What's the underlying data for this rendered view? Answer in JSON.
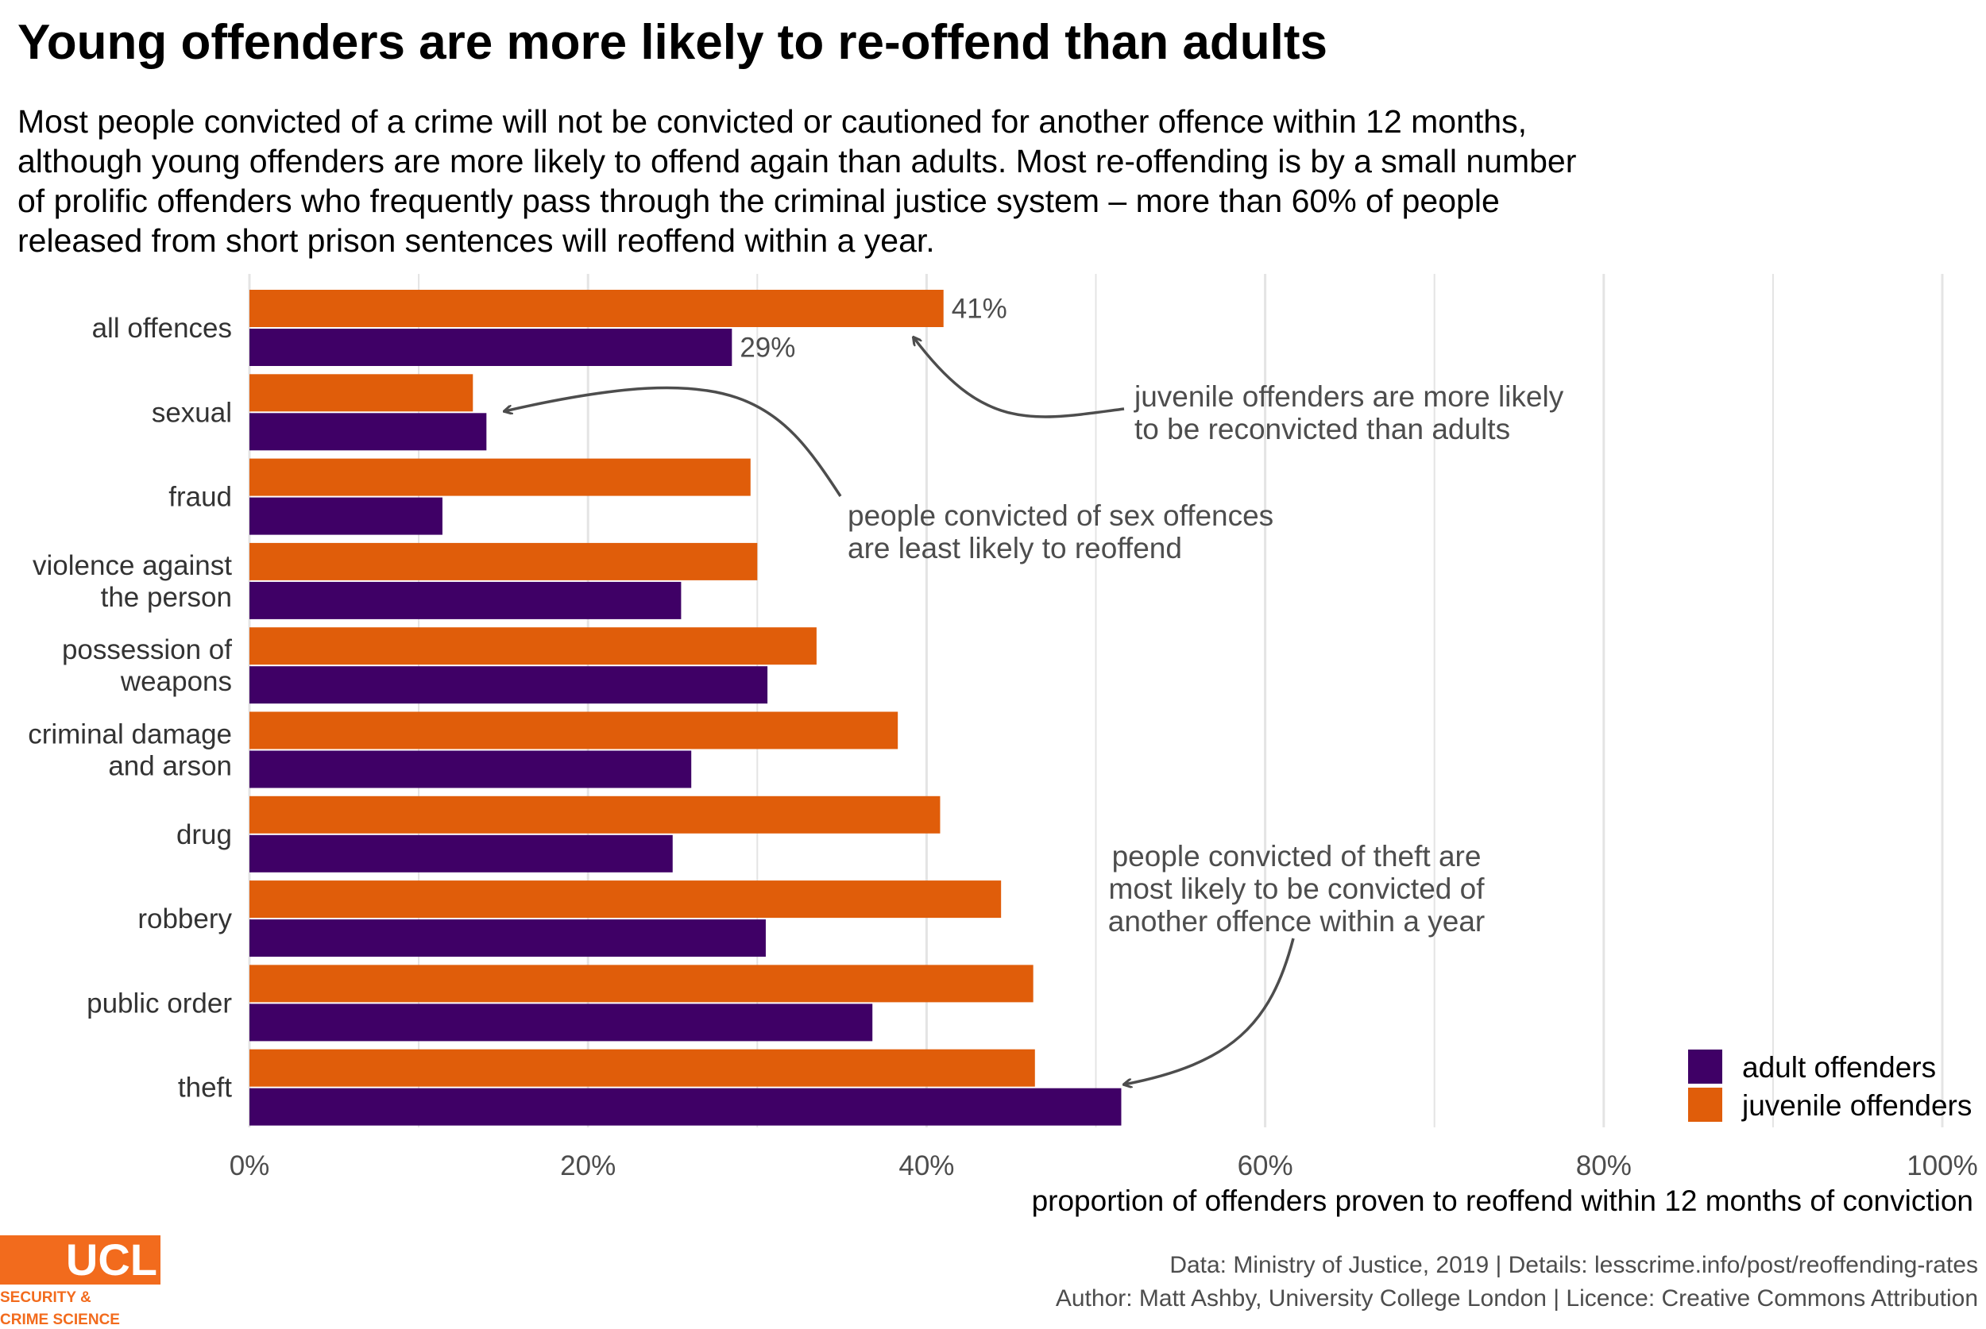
{
  "title": "Young offenders are more likely to re-offend than adults",
  "subtitle": "Most people convicted of a crime will not be convicted or cautioned for another offence within 12 months, although young offenders are more likely to offend again than adults. Most re-offending is by a small number of prolific offenders who frequently pass through the criminal justice system – more than 60% of people released from short prison sentences will reoffend within a year.",
  "colors": {
    "adult": "#3f0066",
    "juvenile": "#e05d0a",
    "grid": "#e4e4e4",
    "annotation": "#4d4d4d"
  },
  "chart_data": {
    "type": "bar",
    "orientation": "horizontal",
    "categories": [
      "all offences",
      "sexual",
      "fraud",
      "violence against\nthe person",
      "possession of\nweapons",
      "criminal damage\nand arson",
      "drug",
      "robbery",
      "public order",
      "theft"
    ],
    "series": [
      {
        "name": "juvenile offenders",
        "values": [
          41,
          13.2,
          29.6,
          30,
          33.5,
          38.3,
          40.8,
          44.4,
          46.3,
          46.4
        ]
      },
      {
        "name": "adult offenders",
        "values": [
          28.5,
          14,
          11.4,
          25.5,
          30.6,
          26.1,
          25,
          30.5,
          36.8,
          51.5
        ]
      }
    ],
    "data_labels": [
      {
        "category": "all offences",
        "series": "juvenile offenders",
        "text": "41%"
      },
      {
        "category": "all offences",
        "series": "adult offenders",
        "text": "29%"
      }
    ],
    "xlim": [
      0,
      100
    ],
    "xticks": [
      0,
      20,
      40,
      60,
      80,
      100
    ],
    "xtick_labels": [
      "0%",
      "20%",
      "40%",
      "60%",
      "80%",
      "100%"
    ],
    "xlabel": "proportion of offenders proven to reoffend within 12 months of conviction",
    "ylabel": "",
    "legend": {
      "position": "bottom-right",
      "entries": [
        "adult offenders",
        "juvenile offenders"
      ]
    },
    "annotations": [
      {
        "id": "ann-juvenile",
        "lines": [
          "juvenile offenders are more likely",
          "to be reconvicted than adults"
        ]
      },
      {
        "id": "ann-sexual",
        "lines": [
          "people convicted of sex offences",
          "are least likely to reoffend"
        ]
      },
      {
        "id": "ann-theft",
        "lines": [
          "people convicted of theft are",
          "most likely to be convicted of",
          "another offence within a year"
        ]
      }
    ]
  },
  "footer": {
    "line1": "Data: Ministry of Justice, 2019 |  Details: lesscrime.info/post/reoffending-rates",
    "line2": "Author: Matt Ashby, University College London |  Licence: Creative Commons Attribution"
  },
  "logo": {
    "name": "UCL",
    "sub1": "SECURITY &",
    "sub2": "CRIME SCIENCE"
  }
}
